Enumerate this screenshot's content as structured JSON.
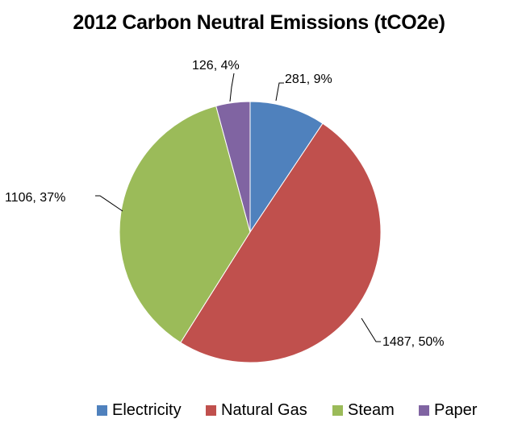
{
  "chart_data": {
    "type": "pie",
    "title": "2012 Carbon Neutral Emissions (tCO2e)",
    "slices": [
      {
        "name": "Electricity",
        "value": 281,
        "percent_label": "281, 9%",
        "color": "#4F81BD"
      },
      {
        "name": "Natural Gas",
        "value": 1487,
        "percent_label": "1487, 50%",
        "color": "#C0504D"
      },
      {
        "name": "Steam",
        "value": 1106,
        "percent_label": "1106, 37%",
        "color": "#9BBB59"
      },
      {
        "name": "Paper",
        "value": 126,
        "percent_label": "126, 4%",
        "color": "#8064A2"
      }
    ],
    "legend_position": "bottom",
    "start_angle": "12 o'clock",
    "direction": "clockwise"
  }
}
